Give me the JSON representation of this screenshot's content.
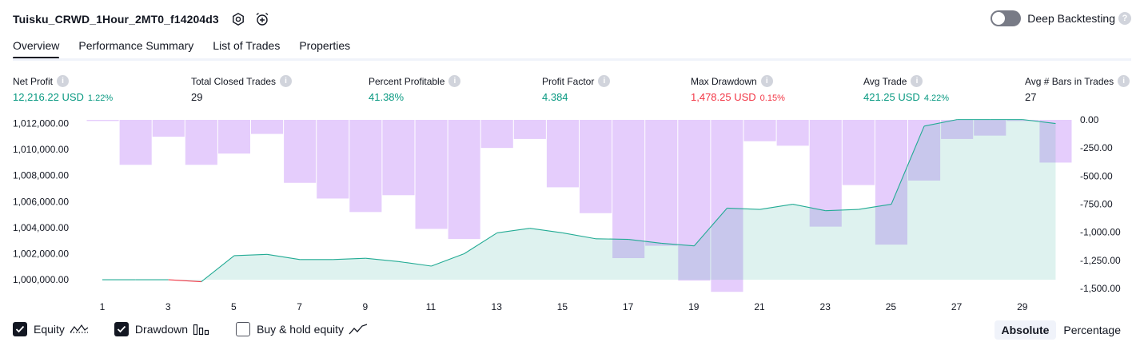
{
  "header": {
    "title": "Tuisku_CRWD_1Hour_2MT0_f14204d3",
    "icons": [
      "settings-icon",
      "alarm-add-icon"
    ],
    "deep_backtesting_label": "Deep Backtesting",
    "deep_backtesting_enabled": false,
    "help": "?"
  },
  "tabs": [
    {
      "label": "Overview",
      "active": true
    },
    {
      "label": "Performance Summary",
      "active": false
    },
    {
      "label": "List of Trades",
      "active": false
    },
    {
      "label": "Properties",
      "active": false
    }
  ],
  "info_glyph": "i",
  "metrics": [
    {
      "label": "Net Profit",
      "value": "12,216.22 USD",
      "pct": "1.22%",
      "color": "green"
    },
    {
      "label": "Total Closed Trades",
      "value": "29",
      "pct": "",
      "color": "dark"
    },
    {
      "label": "Percent Profitable",
      "value": "41.38%",
      "pct": "",
      "color": "green"
    },
    {
      "label": "Profit Factor",
      "value": "4.384",
      "pct": "",
      "color": "green"
    },
    {
      "label": "Max Drawdown",
      "value": "1,478.25 USD",
      "pct": "0.15%",
      "color": "red"
    },
    {
      "label": "Avg Trade",
      "value": "421.25 USD",
      "pct": "4.22%",
      "color": "green"
    },
    {
      "label": "Avg # Bars in Trades",
      "value": "27",
      "pct": "",
      "color": "dark"
    }
  ],
  "chart_data": {
    "type": "line",
    "x_ticks": [
      "1",
      "3",
      "5",
      "7",
      "9",
      "11",
      "13",
      "15",
      "17",
      "19",
      "21",
      "23",
      "25",
      "27",
      "29"
    ],
    "y_left_ticks": [
      "1,012,000.00",
      "1,010,000.00",
      "1,008,000.00",
      "1,006,000.00",
      "1,004,000.00",
      "1,002,000.00",
      "1,000,000.00"
    ],
    "y_left_values": [
      1012000,
      1010000,
      1008000,
      1006000,
      1004000,
      1002000,
      1000000
    ],
    "y_right_ticks": [
      "0.00",
      "-250.00",
      "-500.00",
      "-750.00",
      "-1,000.00",
      "-1,250.00",
      "-1,500.00"
    ],
    "y_right_values": [
      0,
      -250,
      -500,
      -750,
      -1000,
      -1250,
      -1500
    ],
    "ylim_left": [
      999700,
      1012400
    ],
    "ylim_right": [
      -1500,
      0
    ],
    "series": [
      {
        "name": "Equity",
        "color_up": "#22ab94",
        "color_down": "#f23645",
        "x": [
          1,
          2,
          3,
          4,
          5,
          6,
          7,
          8,
          9,
          10,
          11,
          12,
          13,
          14,
          15,
          16,
          17,
          18,
          19,
          20,
          21,
          22,
          23,
          24,
          25,
          26,
          27,
          28,
          29,
          30
        ],
        "values": [
          1000000,
          1000000,
          1000000,
          999850,
          1001850,
          1001950,
          1001550,
          1001550,
          1001650,
          1001400,
          1001050,
          1002000,
          1003600,
          1003950,
          1003600,
          1003150,
          1003100,
          1002800,
          1002600,
          1005500,
          1005400,
          1005800,
          1005300,
          1005400,
          1005800,
          1011800,
          1012300,
          1012300,
          1012300,
          1012000
        ]
      },
      {
        "name": "Drawdown",
        "color": "#e1c4fc",
        "x": [
          1,
          2,
          3,
          4,
          5,
          6,
          7,
          8,
          9,
          10,
          11,
          12,
          13,
          14,
          15,
          16,
          17,
          18,
          19,
          20,
          21,
          22,
          23,
          24,
          25,
          26,
          27,
          28,
          29,
          30
        ],
        "values": [
          -10,
          -400,
          -150,
          -400,
          -300,
          -125,
          -560,
          -700,
          -820,
          -670,
          -970,
          -1060,
          -250,
          -170,
          -600,
          -830,
          -1230,
          -1120,
          -1430,
          -1530,
          -190,
          -230,
          -950,
          -580,
          -1110,
          -540,
          -170,
          -140,
          -10,
          -380
        ]
      }
    ]
  },
  "legend": [
    {
      "label": "Equity",
      "checked": true,
      "icon": "equity-wave-icon"
    },
    {
      "label": "Drawdown",
      "checked": true,
      "icon": "drawdown-bars-icon"
    },
    {
      "label": "Buy & hold equity",
      "checked": false,
      "icon": "buy-hold-line-icon"
    }
  ],
  "modes": [
    {
      "label": "Absolute",
      "active": true
    },
    {
      "label": "Percentage",
      "active": false
    }
  ]
}
